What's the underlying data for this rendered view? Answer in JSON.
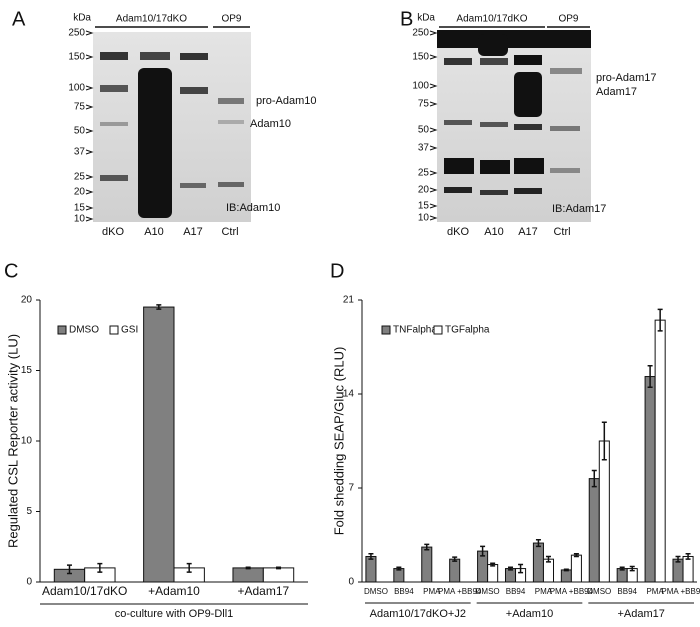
{
  "blots": [
    {
      "panel": "A",
      "unit": "kDa",
      "markers": [
        "250",
        "150",
        "100",
        "75",
        "50",
        "37",
        "25",
        "20",
        "15",
        "10"
      ],
      "group_labels": [
        "Adam10/17dKO",
        "OP9"
      ],
      "lanes": [
        "dKO",
        "A10",
        "A17",
        "Ctrl"
      ],
      "annotations": [
        "pro-Adam10",
        "Adam10"
      ],
      "antibody": "IB:Adam10"
    },
    {
      "panel": "B",
      "unit": "kDa",
      "markers": [
        "250",
        "150",
        "100",
        "75",
        "50",
        "37",
        "25",
        "20",
        "15",
        "10"
      ],
      "group_labels": [
        "Adam10/17dKO",
        "OP9"
      ],
      "lanes": [
        "dKO",
        "A10",
        "A17",
        "Ctrl"
      ],
      "annotations": [
        "pro-Adam17",
        "Adam17"
      ],
      "antibody": "IB:Adam17"
    }
  ],
  "chart_data": [
    {
      "type": "bar",
      "panel": "C",
      "ylabel": "Regulated CSL Reporter activity (LU)",
      "xlabel": "co-culture with OP9-Dll1",
      "categories": [
        "Adam10/17dKO",
        "+Adam10",
        "+Adam17"
      ],
      "series": [
        {
          "name": "DMSO",
          "color": "#808080",
          "values": [
            0.9,
            19.5,
            1.0
          ],
          "errors": [
            0.3,
            0.15,
            0.05
          ]
        },
        {
          "name": "GSI",
          "color": "#ffffff",
          "values": [
            1.0,
            1.0,
            1.0
          ],
          "errors": [
            0.3,
            0.3,
            0.05
          ]
        }
      ],
      "ylim": [
        0,
        20
      ],
      "yticks": [
        0,
        5,
        10,
        15,
        20
      ],
      "legend": "top-left"
    },
    {
      "type": "bar",
      "panel": "D",
      "ylabel": "Fold shedding SEAP/Gluc (RLU)",
      "categories": [
        "DMSO",
        "BB94",
        "PMA",
        "PMA +BB94",
        "DMSO",
        "BB94",
        "PMA",
        "PMA +BB94",
        "DMSO",
        "BB94",
        "PMA",
        "PMA +BB94"
      ],
      "groups": [
        "Adam10/17dKO+J2",
        "+Adam10",
        "+Adam17"
      ],
      "series": [
        {
          "name": "TNFalpha",
          "color": "#808080",
          "values": [
            1.9,
            1.0,
            2.6,
            1.7,
            2.3,
            1.0,
            2.9,
            0.9,
            7.7,
            1.0,
            15.3,
            1.7
          ],
          "errors": [
            0.2,
            0.1,
            0.2,
            0.15,
            0.35,
            0.1,
            0.25,
            0.05,
            0.6,
            0.1,
            0.8,
            0.2
          ]
        },
        {
          "name": "TGFalpha",
          "color": "#ffffff",
          "values": [
            null,
            null,
            null,
            null,
            1.3,
            1.0,
            1.7,
            2.0,
            10.5,
            1.0,
            19.5,
            1.9
          ],
          "errors": [
            null,
            null,
            null,
            null,
            0.1,
            0.3,
            0.2,
            0.1,
            1.4,
            0.15,
            0.8,
            0.2
          ]
        }
      ],
      "ylim": [
        0,
        21
      ],
      "yticks": [
        0,
        7,
        14,
        21
      ],
      "legend": "top-left"
    }
  ]
}
